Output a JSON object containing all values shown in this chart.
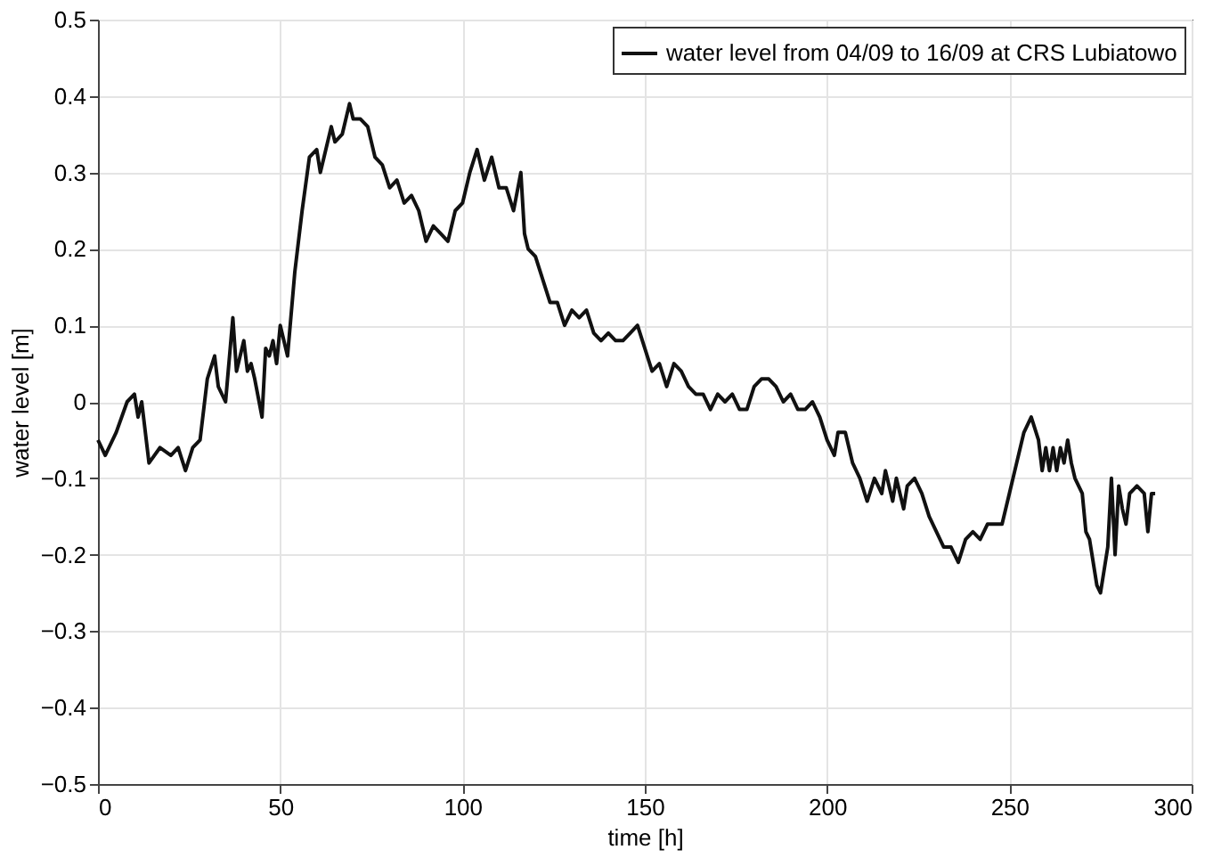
{
  "chart_data": {
    "type": "line",
    "xlabel": "time [h]",
    "ylabel": "water level [m]",
    "xlim": [
      0,
      300
    ],
    "xticks": [
      0,
      50,
      100,
      150,
      200,
      250,
      300
    ],
    "ylim": [
      -0.5,
      0.5
    ],
    "yticks": [
      -0.5,
      -0.4,
      -0.3,
      -0.2,
      -0.1,
      0,
      0.1,
      0.2,
      0.3,
      0.4,
      0.5
    ],
    "grid": true,
    "legend": "top right",
    "line_style": "solid",
    "marker": "none",
    "series": [
      {
        "name": "water level from 04/09 to 16/09 at CRS Lubiatowo",
        "color": "#111111",
        "x": [
          0,
          2,
          5,
          8,
          10,
          11,
          12,
          14,
          17,
          20,
          22,
          24,
          26,
          28,
          30,
          32,
          33,
          35,
          37,
          38,
          40,
          41,
          42,
          43,
          45,
          46,
          47,
          48,
          49,
          50,
          52,
          54,
          56,
          58,
          60,
          61,
          62,
          64,
          65,
          67,
          69,
          70,
          72,
          74,
          76,
          78,
          80,
          82,
          84,
          86,
          88,
          90,
          92,
          94,
          96,
          98,
          100,
          102,
          104,
          106,
          108,
          110,
          112,
          114,
          116,
          117,
          118,
          120,
          122,
          124,
          126,
          128,
          130,
          132,
          134,
          136,
          138,
          140,
          142,
          144,
          146,
          148,
          150,
          152,
          154,
          156,
          158,
          160,
          162,
          164,
          166,
          168,
          170,
          172,
          174,
          176,
          178,
          180,
          182,
          184,
          186,
          188,
          190,
          192,
          194,
          196,
          198,
          200,
          202,
          203,
          205,
          207,
          209,
          211,
          213,
          215,
          216,
          218,
          219,
          221,
          222,
          224,
          226,
          228,
          230,
          232,
          234,
          236,
          238,
          240,
          242,
          244,
          246,
          248,
          250,
          252,
          254,
          256,
          258,
          259,
          260,
          261,
          262,
          263,
          264,
          265,
          266,
          267,
          268,
          270,
          271,
          272,
          273,
          274,
          275,
          276,
          277,
          278,
          279,
          280,
          281,
          282,
          283,
          285,
          287,
          288,
          289,
          290
        ],
        "values": [
          -0.05,
          -0.07,
          -0.04,
          0,
          0.01,
          -0.02,
          0.0,
          -0.08,
          -0.06,
          -0.07,
          -0.06,
          -0.09,
          -0.06,
          -0.05,
          0.03,
          0.06,
          0.02,
          0.0,
          0.11,
          0.04,
          0.08,
          0.04,
          0.05,
          0.03,
          -0.02,
          0.07,
          0.06,
          0.08,
          0.05,
          0.1,
          0.06,
          0.17,
          0.25,
          0.32,
          0.33,
          0.3,
          0.32,
          0.36,
          0.34,
          0.35,
          0.39,
          0.37,
          0.37,
          0.36,
          0.32,
          0.31,
          0.28,
          0.29,
          0.26,
          0.27,
          0.25,
          0.21,
          0.23,
          0.22,
          0.21,
          0.25,
          0.26,
          0.3,
          0.33,
          0.29,
          0.32,
          0.28,
          0.28,
          0.25,
          0.3,
          0.22,
          0.2,
          0.19,
          0.16,
          0.13,
          0.13,
          0.1,
          0.12,
          0.11,
          0.12,
          0.09,
          0.08,
          0.09,
          0.08,
          0.08,
          0.09,
          0.1,
          0.07,
          0.04,
          0.05,
          0.02,
          0.05,
          0.04,
          0.02,
          0.01,
          0.01,
          -0.01,
          0.01,
          0.0,
          0.01,
          -0.01,
          -0.01,
          0.02,
          0.03,
          0.03,
          0.02,
          0.0,
          0.01,
          -0.01,
          -0.01,
          0.0,
          -0.02,
          -0.05,
          -0.07,
          -0.04,
          -0.04,
          -0.08,
          -0.1,
          -0.13,
          -0.1,
          -0.12,
          -0.09,
          -0.13,
          -0.1,
          -0.14,
          -0.11,
          -0.1,
          -0.12,
          -0.15,
          -0.17,
          -0.19,
          -0.19,
          -0.21,
          -0.18,
          -0.17,
          -0.18,
          -0.16,
          -0.16,
          -0.16,
          -0.12,
          -0.08,
          -0.04,
          -0.02,
          -0.05,
          -0.09,
          -0.06,
          -0.09,
          -0.06,
          -0.09,
          -0.06,
          -0.08,
          -0.05,
          -0.08,
          -0.1,
          -0.12,
          -0.17,
          -0.18,
          -0.21,
          -0.24,
          -0.25,
          -0.22,
          -0.19,
          -0.1,
          -0.2,
          -0.11,
          -0.14,
          -0.16,
          -0.12,
          -0.11,
          -0.12,
          -0.17,
          -0.12,
          -0.12
        ]
      }
    ]
  }
}
